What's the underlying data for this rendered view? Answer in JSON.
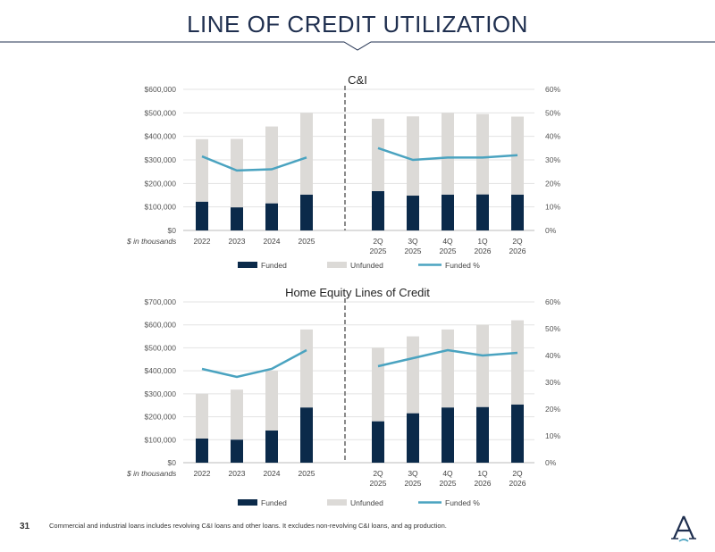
{
  "page": {
    "title": "LINE OF CREDIT UTILIZATION",
    "page_number": "31",
    "footnote": "Commercial and industrial loans includes revolving C&I loans and other loans. It excludes non-revolving C&I loans, and ag production.",
    "colors": {
      "funded": "#0b2a4a",
      "unfunded": "#dcdad7",
      "funded_pct": "#4aa3c0",
      "title": "#1f2f4f"
    },
    "logo_icon": "letter-a-logo-icon"
  },
  "chart_data": [
    {
      "type": "bar",
      "title": "C&I",
      "unit_note": "$ in thousands",
      "categories_annual": [
        "2022",
        "2023",
        "2024",
        "2025"
      ],
      "categories_quarterly": [
        [
          "2Q",
          "2025"
        ],
        [
          "3Q",
          "2025"
        ],
        [
          "4Q",
          "2025"
        ],
        [
          "1Q",
          "2026"
        ],
        [
          "2Q",
          "2026"
        ]
      ],
      "ylim": [
        0,
        600000
      ],
      "yticks": [
        "$0",
        "$100,000",
        "$200,000",
        "$300,000",
        "$400,000",
        "$500,000",
        "$600,000"
      ],
      "y2lim": [
        0,
        60
      ],
      "y2ticks": [
        "0%",
        "10%",
        "20%",
        "30%",
        "40%",
        "50%",
        "60%"
      ],
      "stacked": true,
      "series": [
        {
          "name": "Funded",
          "kind": "bar",
          "values": [
            122000,
            98000,
            115000,
            152000,
            167000,
            148000,
            152000,
            153000,
            152000
          ]
        },
        {
          "name": "Unfunded",
          "kind": "bar",
          "values": [
            266000,
            291000,
            327000,
            348000,
            308000,
            337000,
            348000,
            342000,
            332000
          ]
        },
        {
          "name": "Funded %",
          "kind": "line",
          "axis": "right",
          "values": [
            31.5,
            25.5,
            26,
            31,
            35,
            30,
            31,
            31,
            32
          ]
        }
      ],
      "legend": "bottom"
    },
    {
      "type": "bar",
      "title": "Home Equity Lines of Credit",
      "unit_note": "$ in thousands",
      "categories_annual": [
        "2022",
        "2023",
        "2024",
        "2025"
      ],
      "categories_quarterly": [
        [
          "2Q",
          "2025"
        ],
        [
          "3Q",
          "2025"
        ],
        [
          "4Q",
          "2025"
        ],
        [
          "1Q",
          "2026"
        ],
        [
          "2Q",
          "2026"
        ]
      ],
      "ylim": [
        0,
        700000
      ],
      "yticks": [
        "$0",
        "$100,000",
        "$200,000",
        "$300,000",
        "$400,000",
        "$500,000",
        "$600,000",
        "$700,000"
      ],
      "y2lim": [
        0,
        60
      ],
      "y2ticks": [
        "0%",
        "10%",
        "20%",
        "30%",
        "40%",
        "50%",
        "60%"
      ],
      "stacked": true,
      "series": [
        {
          "name": "Funded",
          "kind": "bar",
          "values": [
            105000,
            100000,
            140000,
            240000,
            180000,
            215000,
            240000,
            242000,
            253000
          ]
        },
        {
          "name": "Unfunded",
          "kind": "bar",
          "values": [
            195000,
            218000,
            260000,
            340000,
            320000,
            335000,
            340000,
            358000,
            367000
          ]
        },
        {
          "name": "Funded %",
          "kind": "line",
          "axis": "right",
          "values": [
            35,
            32,
            35,
            42,
            36,
            39,
            42,
            40,
            41
          ]
        }
      ],
      "legend": "bottom"
    }
  ]
}
